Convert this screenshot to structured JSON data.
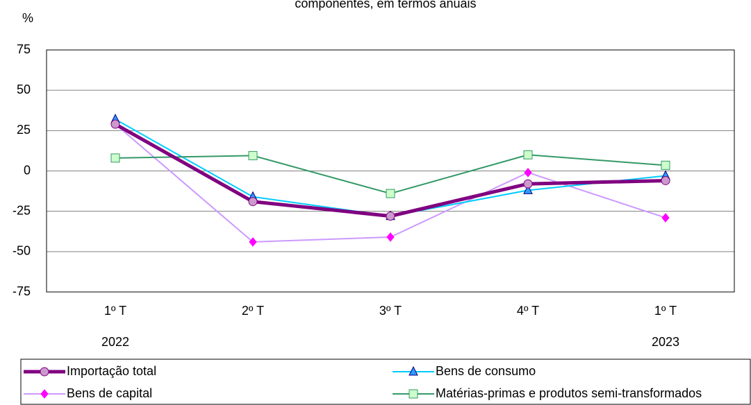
{
  "chart_data": {
    "type": "line",
    "title": "componentes, em termos anuais",
    "y_label": "%",
    "categories": [
      "1º T",
      "2º T",
      "3º T",
      "4º T",
      "1º T"
    ],
    "years": [
      "2022",
      null,
      null,
      null,
      "2023"
    ],
    "ylim": [
      -75,
      75
    ],
    "yticks": [
      -75,
      -50,
      -25,
      0,
      25,
      50,
      75
    ],
    "grid": true,
    "series": [
      {
        "name": "Importação total",
        "color": "#800080",
        "marker_color": "#CC99CC",
        "marker": "circle",
        "line_width": 5,
        "values": [
          29,
          -19,
          -28,
          -8,
          -6
        ]
      },
      {
        "name": "Bens de consumo",
        "color": "#00CCFF",
        "marker_color": "#3399FF",
        "marker": "triangle",
        "line_width": 2,
        "values": [
          32,
          -16,
          -28,
          -12,
          -3
        ]
      },
      {
        "name": "Bens de capital",
        "color": "#CC99FF",
        "marker_color": "#FF00FF",
        "marker": "diamond",
        "line_width": 2,
        "values": [
          29,
          -44,
          -41,
          -1,
          -29
        ]
      },
      {
        "name": "Matérias-primas e produtos semi-transformados",
        "color": "#339966",
        "marker_color": "#CCFFCC",
        "marker": "square",
        "line_width": 2,
        "values": [
          8,
          9.5,
          -14,
          10,
          3.5
        ]
      }
    ]
  }
}
